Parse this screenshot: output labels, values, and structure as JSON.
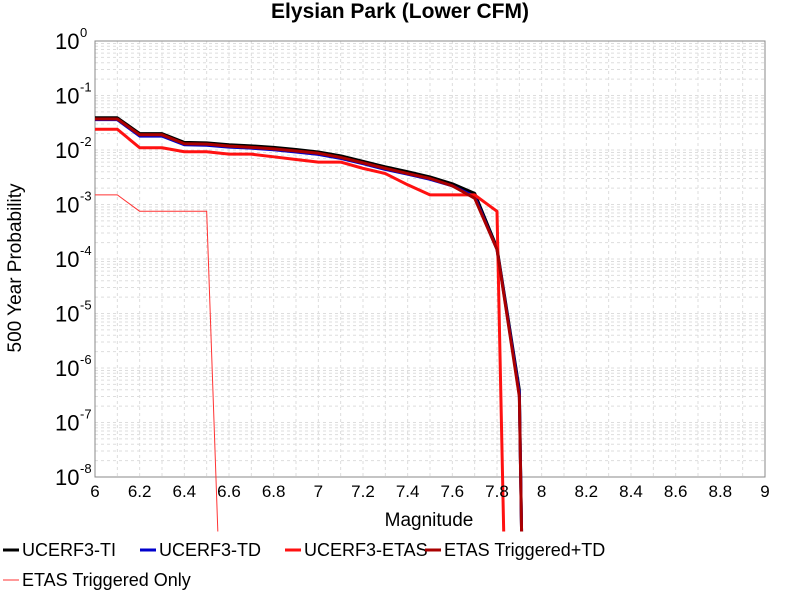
{
  "chart_data": {
    "type": "line",
    "title": "Elysian Park (Lower CFM)",
    "xlabel": "Magnitude",
    "ylabel": "500 Year Probability",
    "xlim": [
      6,
      9
    ],
    "ylim": [
      1e-08,
      1
    ],
    "y_scale": "log",
    "grid": true,
    "legend_position": "bottom",
    "x_ticks": [
      "6",
      "6.2",
      "6.4",
      "6.6",
      "6.8",
      "7",
      "7.2",
      "7.4",
      "7.6",
      "7.8",
      "8",
      "8.2",
      "8.4",
      "8.6",
      "8.8",
      "9"
    ],
    "y_ticks": [
      {
        "base": "10",
        "exp": "0"
      },
      {
        "base": "10",
        "exp": "-1"
      },
      {
        "base": "10",
        "exp": "-2"
      },
      {
        "base": "10",
        "exp": "-3"
      },
      {
        "base": "10",
        "exp": "-4"
      },
      {
        "base": "10",
        "exp": "-5"
      },
      {
        "base": "10",
        "exp": "-6"
      },
      {
        "base": "10",
        "exp": "-7"
      },
      {
        "base": "10",
        "exp": "-8"
      }
    ],
    "series": [
      {
        "name": "UCERF3-TI",
        "color": "#000000",
        "width": 3,
        "x": [
          6.0,
          6.1,
          6.2,
          6.3,
          6.4,
          6.5,
          6.6,
          6.7,
          6.8,
          6.9,
          7.0,
          7.1,
          7.2,
          7.3,
          7.4,
          7.5,
          7.6,
          7.7,
          7.8,
          7.9,
          7.91
        ],
        "y": [
          0.039,
          0.039,
          0.02,
          0.02,
          0.0138,
          0.0135,
          0.0125,
          0.0119,
          0.0112,
          0.0102,
          0.0092,
          0.0078,
          0.0062,
          0.0049,
          0.004,
          0.0032,
          0.0024,
          0.0016,
          0.00016,
          4e-07,
          1e-09
        ]
      },
      {
        "name": "UCERF3-TD",
        "color": "#0000cc",
        "width": 3,
        "x": [
          6.0,
          6.1,
          6.2,
          6.3,
          6.4,
          6.5,
          6.6,
          6.7,
          6.8,
          6.9,
          7.0,
          7.1,
          7.2,
          7.3,
          7.4,
          7.5,
          7.6,
          7.7,
          7.8,
          7.9,
          7.91
        ],
        "y": [
          0.036,
          0.036,
          0.018,
          0.018,
          0.0125,
          0.0122,
          0.0113,
          0.0108,
          0.0101,
          0.0092,
          0.0083,
          0.007,
          0.0056,
          0.0044,
          0.0036,
          0.0029,
          0.0022,
          0.0014,
          0.00015,
          3.5e-07,
          1e-09
        ]
      },
      {
        "name": "UCERF3-ETAS",
        "color": "#ff1111",
        "width": 3,
        "x": [
          6.0,
          6.1,
          6.2,
          6.3,
          6.4,
          6.5,
          6.6,
          6.7,
          6.8,
          6.9,
          7.0,
          7.1,
          7.2,
          7.3,
          7.4,
          7.5,
          7.6,
          7.7,
          7.8,
          7.83
        ],
        "y": [
          0.024,
          0.024,
          0.011,
          0.011,
          0.0093,
          0.0093,
          0.0084,
          0.0084,
          0.0075,
          0.0067,
          0.006,
          0.006,
          0.0046,
          0.0037,
          0.0023,
          0.0015,
          0.0015,
          0.0015,
          0.00075,
          1e-09
        ]
      },
      {
        "name": "ETAS Triggered+TD",
        "color": "#aa0000",
        "width": 3,
        "x": [
          6.0,
          6.1,
          6.2,
          6.3,
          6.4,
          6.5,
          6.6,
          6.7,
          6.8,
          6.9,
          7.0,
          7.1,
          7.2,
          7.3,
          7.4,
          7.5,
          7.6,
          7.7,
          7.8,
          7.9,
          7.91
        ],
        "y": [
          0.037,
          0.037,
          0.019,
          0.019,
          0.013,
          0.0128,
          0.0118,
          0.0112,
          0.0105,
          0.0096,
          0.0087,
          0.0073,
          0.0058,
          0.0046,
          0.0037,
          0.003,
          0.0022,
          0.0013,
          0.00015,
          3e-07,
          1e-09
        ]
      },
      {
        "name": "ETAS Triggered Only",
        "color": "#ff3333",
        "width": 1,
        "x": [
          6.0,
          6.1,
          6.2,
          6.3,
          6.4,
          6.5,
          6.55
        ],
        "y": [
          0.0015,
          0.0015,
          0.00075,
          0.00075,
          0.00075,
          0.00075,
          1e-09
        ]
      }
    ]
  }
}
